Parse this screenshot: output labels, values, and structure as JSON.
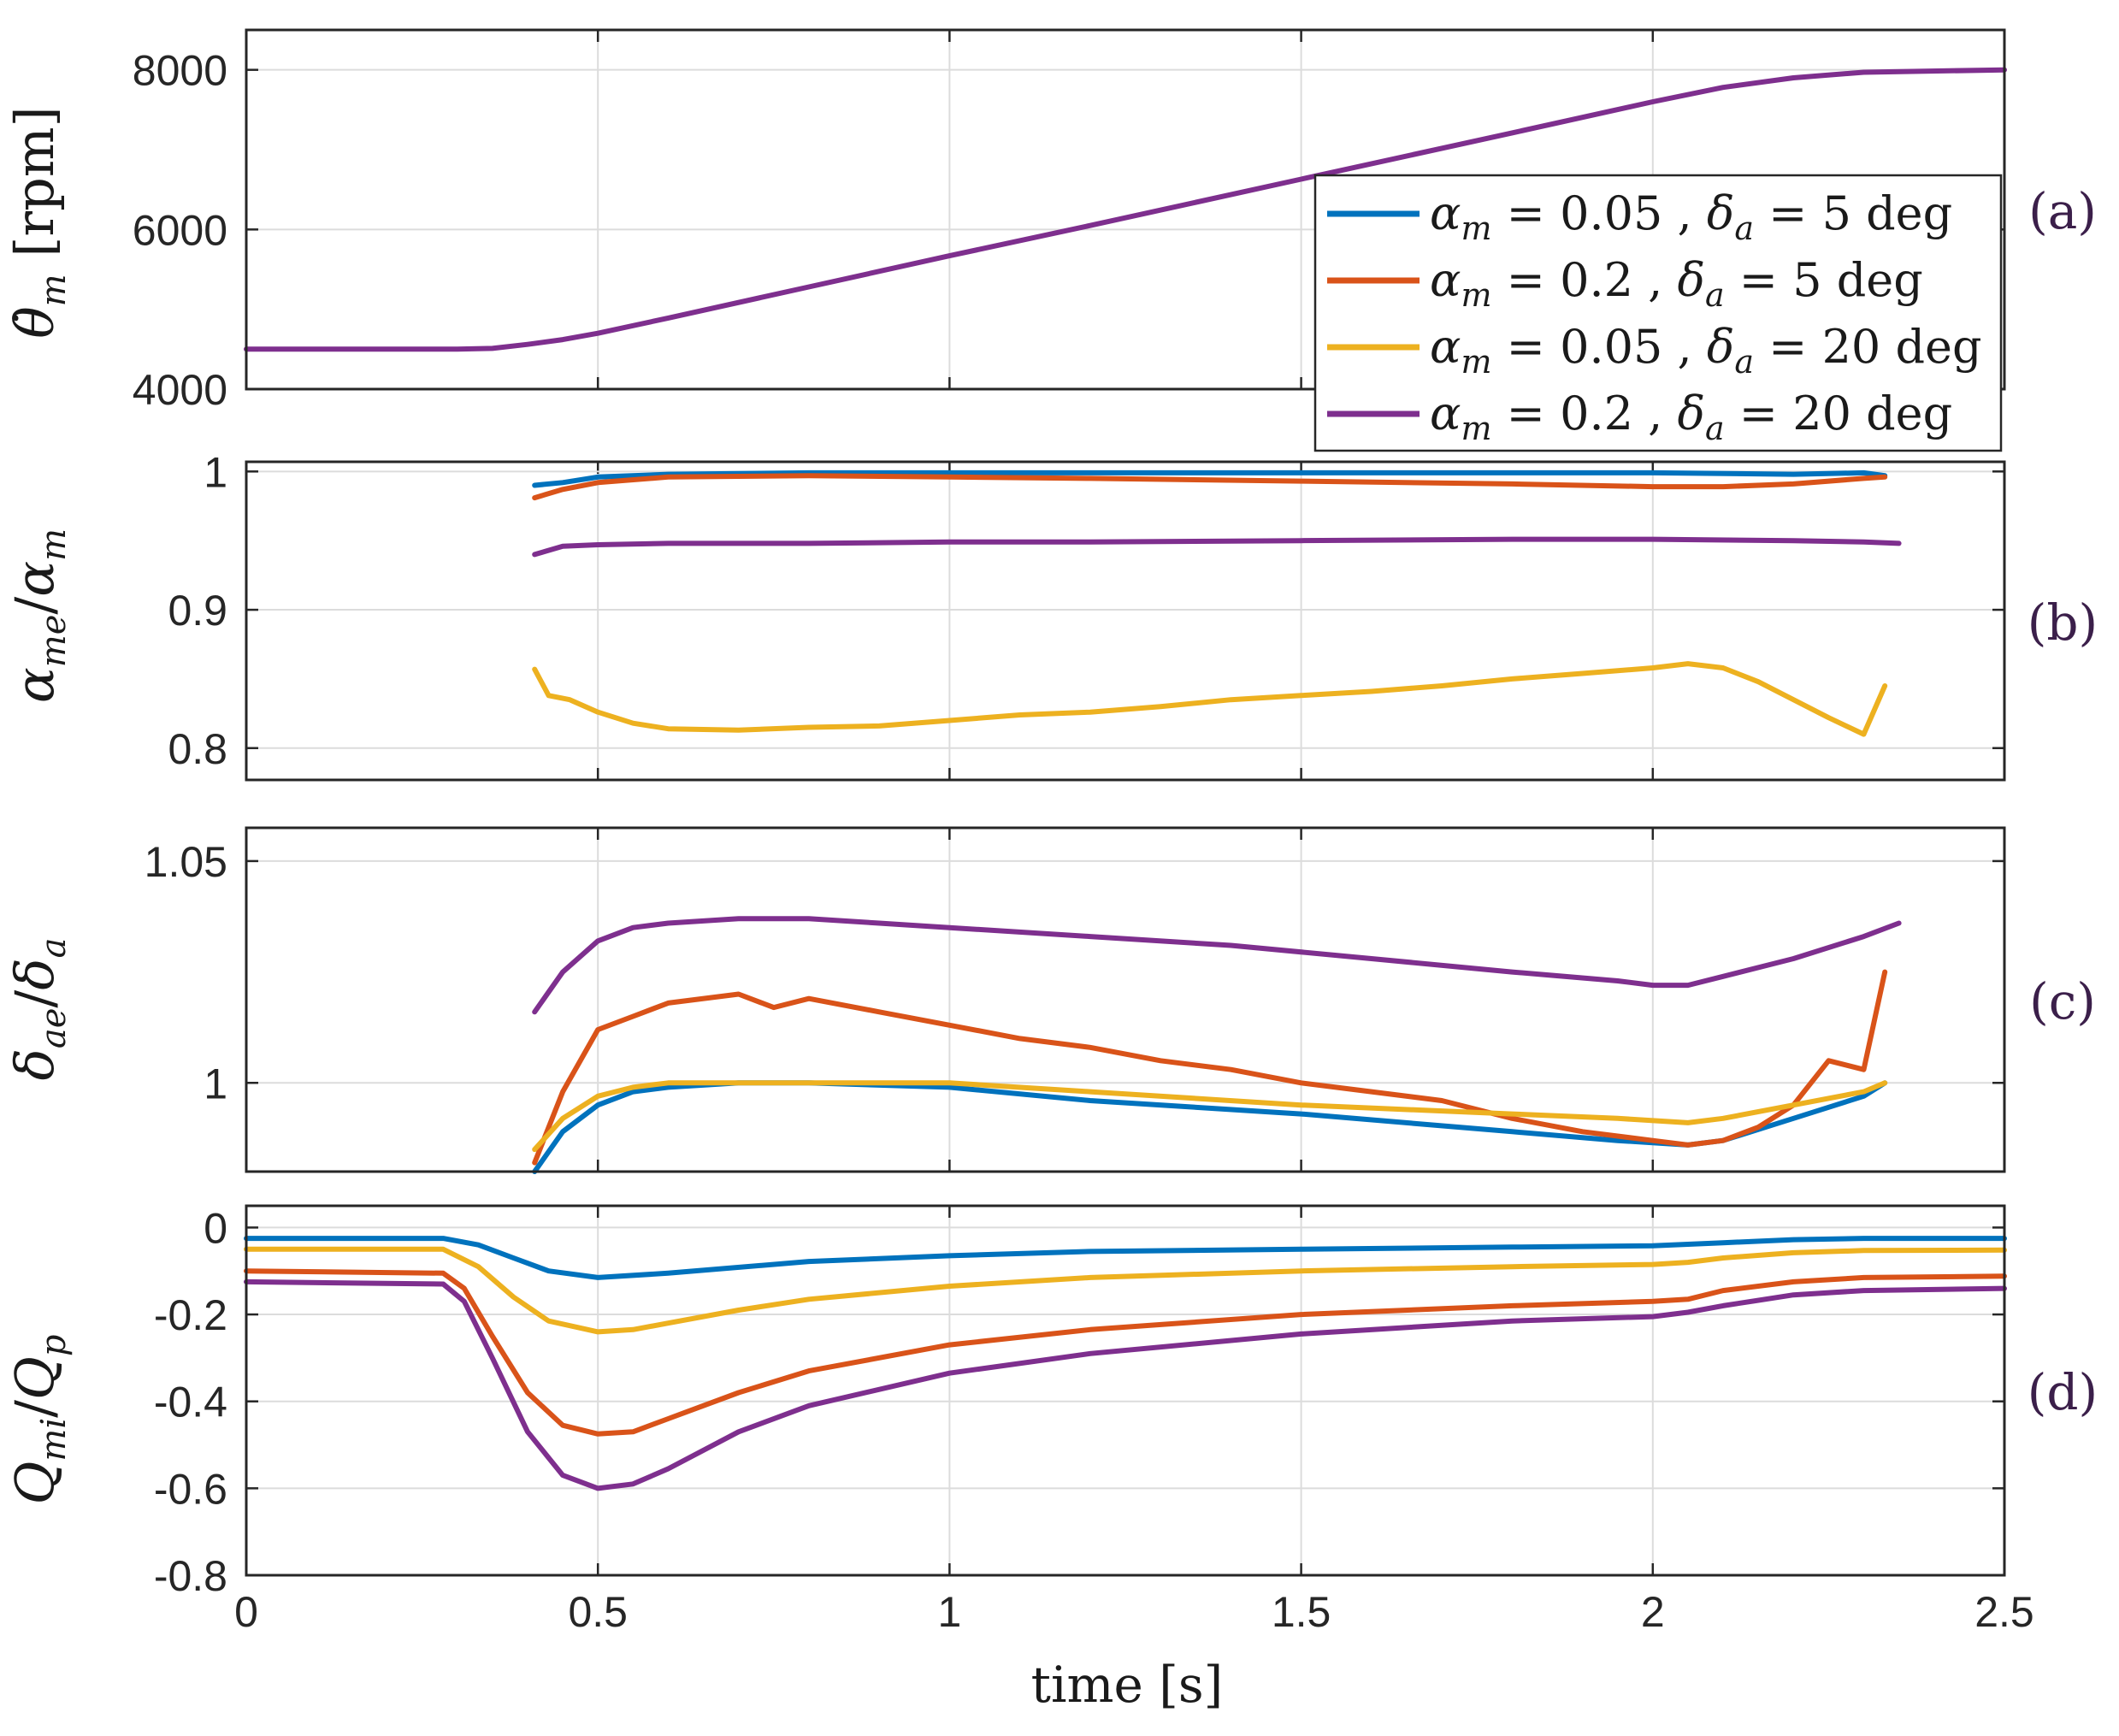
{
  "chart_data": [
    {
      "panel_label": "(a)",
      "type": "line",
      "ylabel": "θ̇m [rpm]",
      "xlim": [
        0,
        2.5
      ],
      "ylim": [
        4000,
        8500
      ],
      "yticks": [
        4000,
        6000,
        8000
      ],
      "ytick_labels": [
        "4000",
        "6000",
        "8000"
      ],
      "series": [
        {
          "name": "αm = 0.2 , δa = 20 deg",
          "color": "#7E2F8E",
          "x": [
            0,
            0.3,
            0.35,
            0.4,
            0.45,
            0.5,
            0.6,
            0.8,
            1.0,
            1.2,
            1.5,
            1.8,
            2.0,
            2.1,
            2.2,
            2.3,
            2.5
          ],
          "y": [
            4500,
            4500,
            4510,
            4560,
            4620,
            4700,
            4890,
            5280,
            5670,
            6050,
            6630,
            7210,
            7600,
            7780,
            7900,
            7970,
            8000
          ]
        }
      ]
    },
    {
      "panel_label": "(b)",
      "type": "line",
      "ylabel": "αme/αm",
      "xlim": [
        0,
        2.5
      ],
      "ylim": [
        0.777,
        1.007
      ],
      "yticks": [
        0.8,
        0.9,
        1
      ],
      "ytick_labels": [
        "0.8",
        "0.9",
        "1"
      ],
      "series": [
        {
          "name": "αm = 0.05 , δa = 5 deg",
          "color": "#0072BD",
          "x": [
            0.41,
            0.45,
            0.5,
            0.6,
            0.8,
            1.0,
            1.2,
            1.5,
            1.8,
            2.0,
            2.2,
            2.3,
            2.33
          ],
          "y": [
            0.99,
            0.992,
            0.996,
            0.998,
            0.999,
            0.999,
            0.999,
            0.999,
            0.999,
            0.999,
            0.998,
            0.999,
            0.997
          ]
        },
        {
          "name": "αm = 0.2 , δa = 5 deg",
          "color": "#D95319",
          "x": [
            0.41,
            0.45,
            0.5,
            0.6,
            0.8,
            1.0,
            1.2,
            1.5,
            1.8,
            2.0,
            2.1,
            2.2,
            2.3,
            2.33
          ],
          "y": [
            0.981,
            0.987,
            0.992,
            0.996,
            0.997,
            0.996,
            0.995,
            0.993,
            0.991,
            0.989,
            0.989,
            0.991,
            0.995,
            0.996
          ]
        },
        {
          "name": "αm = 0.05 , δa = 20 deg",
          "color": "#EDB120",
          "x": [
            0.41,
            0.43,
            0.46,
            0.5,
            0.55,
            0.6,
            0.7,
            0.8,
            0.9,
            1.0,
            1.1,
            1.2,
            1.3,
            1.4,
            1.5,
            1.6,
            1.7,
            1.8,
            1.9,
            2.0,
            2.05,
            2.1,
            2.15,
            2.2,
            2.25,
            2.3,
            2.33
          ],
          "y": [
            0.857,
            0.838,
            0.835,
            0.826,
            0.818,
            0.814,
            0.813,
            0.815,
            0.816,
            0.82,
            0.824,
            0.826,
            0.83,
            0.835,
            0.838,
            0.841,
            0.845,
            0.85,
            0.854,
            0.858,
            0.861,
            0.858,
            0.848,
            0.835,
            0.822,
            0.81,
            0.845
          ]
        },
        {
          "name": "αm = 0.2 , δa = 20 deg",
          "color": "#7E2F8E",
          "x": [
            0.41,
            0.45,
            0.5,
            0.6,
            0.8,
            1.0,
            1.2,
            1.5,
            1.8,
            2.0,
            2.2,
            2.3,
            2.35
          ],
          "y": [
            0.94,
            0.946,
            0.947,
            0.948,
            0.948,
            0.949,
            0.949,
            0.95,
            0.951,
            0.951,
            0.95,
            0.949,
            0.948
          ]
        }
      ]
    },
    {
      "panel_label": "(c)",
      "type": "line",
      "ylabel": "δae/δa",
      "xlim": [
        0,
        2.5
      ],
      "ylim": [
        0.98,
        1.0575
      ],
      "yticks": [
        1,
        1.05
      ],
      "ytick_labels": [
        "1",
        "1.05"
      ],
      "series": [
        {
          "name": "αm = 0.05 , δa = 5 deg",
          "color": "#0072BD",
          "x": [
            0.41,
            0.45,
            0.5,
            0.55,
            0.6,
            0.7,
            0.8,
            1.0,
            1.2,
            1.5,
            1.8,
            1.95,
            2.05,
            2.1,
            2.2,
            2.3,
            2.33
          ],
          "y": [
            0.98,
            0.989,
            0.995,
            0.998,
            0.999,
            1.0,
            1.0,
            0.999,
            0.996,
            0.993,
            0.989,
            0.987,
            0.986,
            0.987,
            0.992,
            0.997,
            1.0
          ]
        },
        {
          "name": "αm = 0.2 , δa = 5 deg",
          "color": "#D95319",
          "x": [
            0.41,
            0.45,
            0.5,
            0.55,
            0.6,
            0.7,
            0.75,
            0.8,
            0.9,
            1.0,
            1.1,
            1.2,
            1.3,
            1.4,
            1.5,
            1.6,
            1.7,
            1.8,
            1.9,
            2.0,
            2.05,
            2.1,
            2.15,
            2.2,
            2.25,
            2.3,
            2.33
          ],
          "y": [
            0.982,
            0.998,
            1.012,
            1.015,
            1.018,
            1.02,
            1.017,
            1.019,
            1.016,
            1.013,
            1.01,
            1.008,
            1.005,
            1.003,
            1.0,
            0.998,
            0.996,
            0.992,
            0.989,
            0.987,
            0.986,
            0.987,
            0.99,
            0.995,
            1.005,
            1.003,
            1.025
          ]
        },
        {
          "name": "αm = 0.05 , δa = 20 deg",
          "color": "#EDB120",
          "x": [
            0.41,
            0.45,
            0.5,
            0.55,
            0.6,
            0.7,
            0.8,
            1.0,
            1.2,
            1.5,
            1.8,
            1.95,
            2.05,
            2.1,
            2.2,
            2.3,
            2.33
          ],
          "y": [
            0.985,
            0.992,
            0.997,
            0.999,
            1.0,
            1.0,
            1.0,
            1.0,
            0.998,
            0.995,
            0.993,
            0.992,
            0.991,
            0.992,
            0.995,
            0.998,
            1.0
          ]
        },
        {
          "name": "αm = 0.2 , δa = 20 deg",
          "color": "#7E2F8E",
          "x": [
            0.41,
            0.45,
            0.5,
            0.55,
            0.6,
            0.7,
            0.8,
            0.9,
            1.0,
            1.2,
            1.4,
            1.6,
            1.8,
            1.95,
            2.0,
            2.05,
            2.1,
            2.2,
            2.3,
            2.35
          ],
          "y": [
            1.016,
            1.025,
            1.032,
            1.035,
            1.036,
            1.037,
            1.037,
            1.036,
            1.035,
            1.033,
            1.031,
            1.028,
            1.025,
            1.023,
            1.022,
            1.022,
            1.024,
            1.028,
            1.033,
            1.036
          ]
        }
      ]
    },
    {
      "panel_label": "(d)",
      "type": "line",
      "ylabel": "Qmi/Qp",
      "xlabel": "time [s]",
      "xlim": [
        0,
        2.5
      ],
      "ylim": [
        -0.8,
        0.05
      ],
      "yticks": [
        -0.8,
        -0.6,
        -0.4,
        -0.2,
        0
      ],
      "ytick_labels": [
        "-0.8",
        "-0.6",
        "-0.4",
        "-0.2",
        "0"
      ],
      "xticks": [
        0,
        0.5,
        1,
        1.5,
        2,
        2.5
      ],
      "xtick_labels": [
        "0",
        "0.5",
        "1",
        "1.5",
        "2",
        "2.5"
      ],
      "series": [
        {
          "name": "αm = 0.05 , δa = 5 deg",
          "color": "#0072BD",
          "x": [
            0,
            0.28,
            0.33,
            0.38,
            0.43,
            0.5,
            0.6,
            0.8,
            1.0,
            1.2,
            1.5,
            1.8,
            2.0,
            2.1,
            2.2,
            2.3,
            2.5
          ],
          "y": [
            -0.025,
            -0.025,
            -0.04,
            -0.07,
            -0.1,
            -0.115,
            -0.105,
            -0.078,
            -0.065,
            -0.055,
            -0.05,
            -0.045,
            -0.042,
            -0.035,
            -0.028,
            -0.025,
            -0.025
          ]
        },
        {
          "name": "αm = 0.2 , δa = 5 deg",
          "color": "#D95319",
          "x": [
            0,
            0.28,
            0.31,
            0.35,
            0.4,
            0.45,
            0.5,
            0.55,
            0.6,
            0.7,
            0.8,
            1.0,
            1.2,
            1.5,
            1.8,
            2.0,
            2.05,
            2.1,
            2.2,
            2.3,
            2.5
          ],
          "y": [
            -0.1,
            -0.105,
            -0.14,
            -0.25,
            -0.38,
            -0.455,
            -0.475,
            -0.47,
            -0.44,
            -0.38,
            -0.33,
            -0.27,
            -0.235,
            -0.2,
            -0.18,
            -0.17,
            -0.165,
            -0.145,
            -0.125,
            -0.115,
            -0.112
          ]
        },
        {
          "name": "αm = 0.05 , δa = 20 deg",
          "color": "#EDB120",
          "x": [
            0,
            0.28,
            0.33,
            0.38,
            0.43,
            0.5,
            0.55,
            0.6,
            0.7,
            0.8,
            1.0,
            1.2,
            1.5,
            1.8,
            2.0,
            2.05,
            2.1,
            2.2,
            2.3,
            2.5
          ],
          "y": [
            -0.05,
            -0.05,
            -0.09,
            -0.16,
            -0.215,
            -0.24,
            -0.235,
            -0.22,
            -0.19,
            -0.165,
            -0.135,
            -0.115,
            -0.1,
            -0.09,
            -0.085,
            -0.08,
            -0.07,
            -0.058,
            -0.053,
            -0.052
          ]
        },
        {
          "name": "αm = 0.2 , δa = 20 deg",
          "color": "#7E2F8E",
          "x": [
            0,
            0.28,
            0.31,
            0.35,
            0.4,
            0.45,
            0.5,
            0.55,
            0.6,
            0.7,
            0.8,
            1.0,
            1.2,
            1.5,
            1.8,
            2.0,
            2.05,
            2.1,
            2.2,
            2.3,
            2.5
          ],
          "y": [
            -0.125,
            -0.13,
            -0.17,
            -0.3,
            -0.47,
            -0.57,
            -0.6,
            -0.59,
            -0.555,
            -0.47,
            -0.41,
            -0.335,
            -0.29,
            -0.245,
            -0.215,
            -0.205,
            -0.195,
            -0.18,
            -0.155,
            -0.145,
            -0.14
          ]
        }
      ]
    }
  ],
  "legend": {
    "location": "panel (a), lower-right",
    "entries": [
      {
        "prefix": "α",
        "sub": "m",
        "mid": " = 0.05 , δ",
        "sub2": "a",
        "suffix": " = 5 deg",
        "color": "#0072BD"
      },
      {
        "prefix": "α",
        "sub": "m",
        "mid": " = 0.2 , δ",
        "sub2": "a",
        "suffix": " = 5 deg",
        "color": "#D95319"
      },
      {
        "prefix": "α",
        "sub": "m",
        "mid": " = 0.05 , δ",
        "sub2": "a",
        "suffix": " = 20 deg",
        "color": "#EDB120"
      },
      {
        "prefix": "α",
        "sub": "m",
        "mid": " = 0.2 , δ",
        "sub2": "a",
        "suffix": " = 20 deg",
        "color": "#7E2F8E"
      }
    ]
  },
  "ylabels": {
    "a": {
      "main": "θ̇",
      "sub": "m",
      "unit": " [rpm]"
    },
    "b": {
      "main1": "α",
      "sub1": "me",
      "slash": "/",
      "main2": "α",
      "sub2": "m"
    },
    "c": {
      "main1": "δ",
      "sub1": "ae",
      "slash": "/",
      "main2": "δ",
      "sub2": "a"
    },
    "d": {
      "main1": "Q",
      "sub1": "mi",
      "slash": "/",
      "main2": "Q",
      "sub2": "p"
    }
  },
  "xlabel": "time [s]"
}
